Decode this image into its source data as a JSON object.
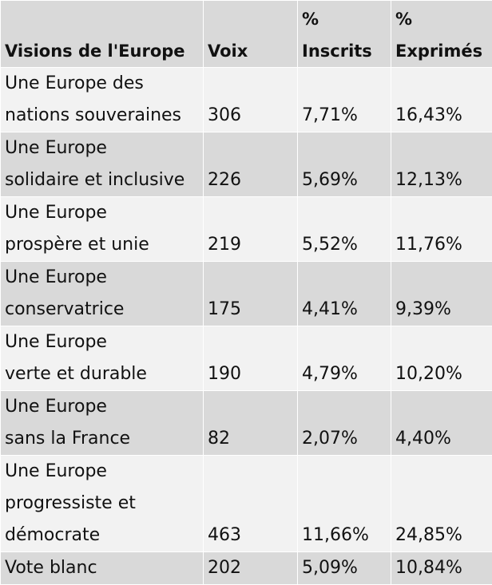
{
  "table": {
    "headers": [
      [
        "Visions de l'Europe"
      ],
      [
        "Voix"
      ],
      [
        "%",
        "Inscrits"
      ],
      [
        "%",
        "Exprimés"
      ]
    ],
    "rows": [
      {
        "vision": [
          "Une Europe des",
          "nations souveraines"
        ],
        "voix": "306",
        "inscrits": "7,71%",
        "exprimes": "16,43%"
      },
      {
        "vision": [
          "Une Europe",
          "solidaire et inclusive"
        ],
        "voix": "226",
        "inscrits": "5,69%",
        "exprimes": "12,13%"
      },
      {
        "vision": [
          "Une Europe",
          "prospère et unie"
        ],
        "voix": "219",
        "inscrits": "5,52%",
        "exprimes": "11,76%"
      },
      {
        "vision": [
          "Une Europe",
          "conservatrice"
        ],
        "voix": "175",
        "inscrits": "4,41%",
        "exprimes": "9,39%"
      },
      {
        "vision": [
          "Une Europe",
          "verte et durable"
        ],
        "voix": "190",
        "inscrits": "4,79%",
        "exprimes": "10,20%"
      },
      {
        "vision": [
          "Une Europe",
          "sans la France"
        ],
        "voix": "82",
        "inscrits": "2,07%",
        "exprimes": "4,40%"
      },
      {
        "vision": [
          "Une Europe",
          "progressiste et",
          "démocrate"
        ],
        "voix": "463",
        "inscrits": "11,66%",
        "exprimes": "24,85%"
      },
      {
        "vision": [
          "Vote blanc"
        ],
        "voix": "202",
        "inscrits": "5,09%",
        "exprimes": "10,84%"
      }
    ]
  }
}
